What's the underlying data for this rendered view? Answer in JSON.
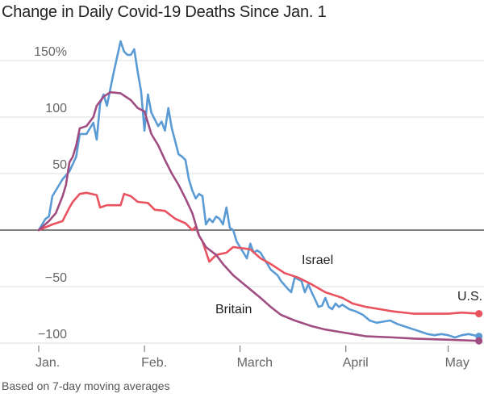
{
  "chart_data": {
    "type": "line",
    "title": "Change in Daily Covid-19 Deaths Since Jan. 1",
    "note": "Based on 7-day moving averages",
    "xlabel": "",
    "ylabel": "",
    "x_unit": "days since Jan. 1",
    "xlim": [
      0,
      129
    ],
    "ylim": [
      -100,
      150
    ],
    "grid": true,
    "y_ticks": [
      {
        "value": 150,
        "label": "150%"
      },
      {
        "value": 100,
        "label": "100"
      },
      {
        "value": 50,
        "label": "50"
      },
      {
        "value": 0,
        "label": ""
      },
      {
        "value": -50,
        "label": "−50"
      },
      {
        "value": -100,
        "label": "−100"
      }
    ],
    "x_ticks": [
      {
        "value": 0,
        "label": "Jan."
      },
      {
        "value": 31,
        "label": "Feb."
      },
      {
        "value": 59,
        "label": "March"
      },
      {
        "value": 90,
        "label": "April"
      },
      {
        "value": 120,
        "label": "May"
      }
    ],
    "series": [
      {
        "name": "Israel",
        "label": "Israel",
        "color": "#5b9bd5",
        "points": [
          [
            0,
            0
          ],
          [
            2,
            10
          ],
          [
            3,
            12
          ],
          [
            4,
            30
          ],
          [
            5,
            35
          ],
          [
            7,
            45
          ],
          [
            9,
            52
          ],
          [
            11,
            65
          ],
          [
            12,
            85
          ],
          [
            14,
            85
          ],
          [
            16,
            95
          ],
          [
            17,
            80
          ],
          [
            18,
            112
          ],
          [
            19,
            120
          ],
          [
            20,
            110
          ],
          [
            21,
            125
          ],
          [
            22,
            140
          ],
          [
            24,
            167
          ],
          [
            25,
            158
          ],
          [
            26,
            155
          ],
          [
            27,
            155
          ],
          [
            28,
            160
          ],
          [
            29,
            140
          ],
          [
            30,
            123
          ],
          [
            31,
            88
          ],
          [
            32,
            120
          ],
          [
            33,
            104
          ],
          [
            34,
            98
          ],
          [
            35,
            92
          ],
          [
            36,
            96
          ],
          [
            37,
            88
          ],
          [
            38,
            108
          ],
          [
            39,
            90
          ],
          [
            41,
            67
          ],
          [
            42,
            65
          ],
          [
            43,
            62
          ],
          [
            44,
            45
          ],
          [
            45,
            35
          ],
          [
            46,
            28
          ],
          [
            47,
            32
          ],
          [
            48,
            30
          ],
          [
            49,
            5
          ],
          [
            50,
            10
          ],
          [
            51,
            7
          ],
          [
            52,
            12
          ],
          [
            53,
            10
          ],
          [
            54,
            5
          ],
          [
            55,
            20
          ],
          [
            56,
            2
          ],
          [
            57,
            0
          ],
          [
            58,
            -10
          ],
          [
            60,
            -20
          ],
          [
            61,
            -25
          ],
          [
            62,
            -12
          ],
          [
            63,
            -20
          ],
          [
            64,
            -18
          ],
          [
            65,
            -20
          ],
          [
            66,
            -25
          ],
          [
            68,
            -35
          ],
          [
            70,
            -40
          ],
          [
            71,
            -45
          ],
          [
            73,
            -52
          ],
          [
            74,
            -55
          ],
          [
            75,
            -42
          ],
          [
            77,
            -45
          ],
          [
            78,
            -55
          ],
          [
            79,
            -48
          ],
          [
            80,
            -55
          ],
          [
            82,
            -68
          ],
          [
            83,
            -67
          ],
          [
            84,
            -60
          ],
          [
            85,
            -68
          ],
          [
            86,
            -70
          ],
          [
            87,
            -65
          ],
          [
            88,
            -68
          ],
          [
            89,
            -66
          ],
          [
            91,
            -70
          ],
          [
            93,
            -72
          ],
          [
            95,
            -75
          ],
          [
            97,
            -80
          ],
          [
            99,
            -82
          ],
          [
            101,
            -81
          ],
          [
            103,
            -80
          ],
          [
            105,
            -83
          ],
          [
            107,
            -85
          ],
          [
            110,
            -88
          ],
          [
            112,
            -90
          ],
          [
            114,
            -92
          ],
          [
            116,
            -93
          ],
          [
            118,
            -92
          ],
          [
            120,
            -93
          ],
          [
            122,
            -95
          ],
          [
            124,
            -93
          ],
          [
            126,
            -92
          ],
          [
            129,
            -94
          ]
        ]
      },
      {
        "name": "Britain",
        "label": "Britain",
        "color": "#a04d82",
        "points": [
          [
            0,
            0
          ],
          [
            3,
            8
          ],
          [
            5,
            15
          ],
          [
            7,
            30
          ],
          [
            8,
            40
          ],
          [
            9,
            60
          ],
          [
            10,
            65
          ],
          [
            11,
            75
          ],
          [
            12,
            90
          ],
          [
            14,
            92
          ],
          [
            16,
            100
          ],
          [
            17,
            110
          ],
          [
            19,
            118
          ],
          [
            21,
            122
          ],
          [
            24,
            121
          ],
          [
            27,
            115
          ],
          [
            29,
            108
          ],
          [
            31,
            105
          ],
          [
            32,
            95
          ],
          [
            33,
            85
          ],
          [
            35,
            75
          ],
          [
            37,
            62
          ],
          [
            39,
            50
          ],
          [
            41,
            40
          ],
          [
            43,
            28
          ],
          [
            45,
            15
          ],
          [
            46,
            5
          ],
          [
            47,
            -5
          ],
          [
            49,
            -15
          ],
          [
            52,
            -22
          ],
          [
            54,
            -30
          ],
          [
            57,
            -40
          ],
          [
            61,
            -50
          ],
          [
            65,
            -60
          ],
          [
            68,
            -68
          ],
          [
            71,
            -75
          ],
          [
            75,
            -80
          ],
          [
            80,
            -85
          ],
          [
            84,
            -88
          ],
          [
            88,
            -90
          ],
          [
            92,
            -92
          ],
          [
            96,
            -94
          ],
          [
            104,
            -95
          ],
          [
            110,
            -96
          ],
          [
            120,
            -97
          ],
          [
            129,
            -98
          ]
        ]
      },
      {
        "name": "U.S.",
        "label": "U.S.",
        "color": "#e9525f",
        "points": [
          [
            0,
            0
          ],
          [
            4,
            5
          ],
          [
            7,
            8
          ],
          [
            9,
            20
          ],
          [
            10,
            25
          ],
          [
            12,
            32
          ],
          [
            14,
            33
          ],
          [
            17,
            31
          ],
          [
            18,
            20
          ],
          [
            20,
            22
          ],
          [
            24,
            22
          ],
          [
            25,
            32
          ],
          [
            27,
            30
          ],
          [
            29,
            25
          ],
          [
            32,
            24
          ],
          [
            34,
            18
          ],
          [
            37,
            17
          ],
          [
            40,
            10
          ],
          [
            43,
            6
          ],
          [
            45,
            0
          ],
          [
            46,
            3
          ],
          [
            47,
            -5
          ],
          [
            48,
            -10
          ],
          [
            50,
            -28
          ],
          [
            52,
            -22
          ],
          [
            55,
            -20
          ],
          [
            57,
            -15
          ],
          [
            62,
            -17
          ],
          [
            65,
            -25
          ],
          [
            68,
            -30
          ],
          [
            72,
            -38
          ],
          [
            76,
            -42
          ],
          [
            80,
            -48
          ],
          [
            84,
            -55
          ],
          [
            87,
            -58
          ],
          [
            89,
            -60
          ],
          [
            92,
            -65
          ],
          [
            96,
            -68
          ],
          [
            100,
            -70
          ],
          [
            104,
            -72
          ],
          [
            110,
            -74
          ],
          [
            120,
            -74
          ],
          [
            124,
            -73
          ],
          [
            129,
            -74
          ]
        ]
      }
    ],
    "labels": {
      "israel": "Israel",
      "britain": "Britain",
      "us": "U.S."
    }
  }
}
